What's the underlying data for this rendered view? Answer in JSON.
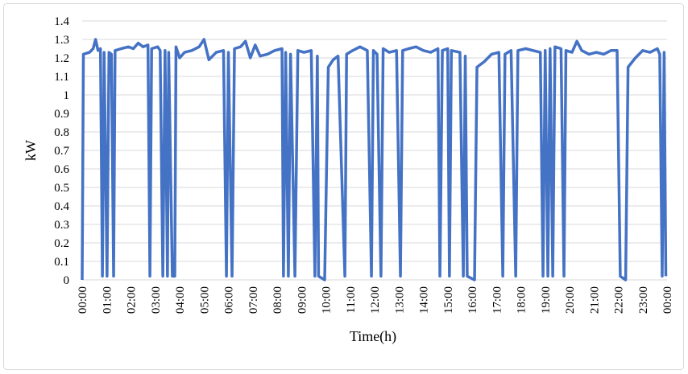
{
  "chart_data": {
    "type": "line",
    "x_label": "Time(h)",
    "y_label": "kW",
    "xlim": [
      0,
      24
    ],
    "xticks": [
      {
        "value": 0,
        "label": "00:00"
      },
      {
        "value": 1,
        "label": "01:00"
      },
      {
        "value": 2,
        "label": "02:00"
      },
      {
        "value": 3,
        "label": "03:00"
      },
      {
        "value": 4,
        "label": "04:00"
      },
      {
        "value": 5,
        "label": "05:00"
      },
      {
        "value": 6,
        "label": "06:00"
      },
      {
        "value": 7,
        "label": "07:00"
      },
      {
        "value": 8,
        "label": "08:00"
      },
      {
        "value": 9,
        "label": "09:00"
      },
      {
        "value": 10,
        "label": "10:00"
      },
      {
        "value": 11,
        "label": "11:00"
      },
      {
        "value": 12,
        "label": "12:00"
      },
      {
        "value": 13,
        "label": "13:00"
      },
      {
        "value": 14,
        "label": "14:00"
      },
      {
        "value": 15,
        "label": "15:00"
      },
      {
        "value": 16,
        "label": "16:00"
      },
      {
        "value": 17,
        "label": "17:00"
      },
      {
        "value": 18,
        "label": "18:00"
      },
      {
        "value": 19,
        "label": "19:00"
      },
      {
        "value": 20,
        "label": "20:00"
      },
      {
        "value": 21,
        "label": "21:00"
      },
      {
        "value": 22,
        "label": "22:00"
      },
      {
        "value": 23,
        "label": "23:00"
      },
      {
        "value": 24,
        "label": "00:00"
      }
    ],
    "ylim": [
      0,
      1.4
    ],
    "yticks": [
      0,
      0.1,
      0.2,
      0.3,
      0.4,
      0.5,
      0.6,
      0.7,
      0.8,
      0.9,
      1,
      1.1,
      1.2,
      1.3,
      1.4
    ],
    "grid": true,
    "color": "#4472c4",
    "x": [
      0,
      0.05,
      0.3,
      0.45,
      0.55,
      0.65,
      0.75,
      0.83,
      0.9,
      1.02,
      1.1,
      1.2,
      1.29,
      1.35,
      1.6,
      1.9,
      2.1,
      2.3,
      2.5,
      2.7,
      2.78,
      2.85,
      3.1,
      3.2,
      3.31,
      3.4,
      3.5,
      3.55,
      3.7,
      3.8,
      3.85,
      4.0,
      4.2,
      4.5,
      4.8,
      5.0,
      5.2,
      5.5,
      5.8,
      5.92,
      6.0,
      6.15,
      6.25,
      6.5,
      6.7,
      6.9,
      7.1,
      7.3,
      7.6,
      7.9,
      8.2,
      8.26,
      8.35,
      8.46,
      8.55,
      8.73,
      8.85,
      9.1,
      9.4,
      9.55,
      9.65,
      9.7,
      9.95,
      10.1,
      10.3,
      10.5,
      10.78,
      10.85,
      11.1,
      11.4,
      11.7,
      11.87,
      11.95,
      12.1,
      12.26,
      12.35,
      12.6,
      12.9,
      13.06,
      13.15,
      13.4,
      13.7,
      14.0,
      14.3,
      14.6,
      14.68,
      14.78,
      15.0,
      15.07,
      15.15,
      15.5,
      15.64,
      15.72,
      15.8,
      16.1,
      16.2,
      16.5,
      16.8,
      17.1,
      17.26,
      17.35,
      17.6,
      17.79,
      17.88,
      18.2,
      18.5,
      18.8,
      18.91,
      19.0,
      19.11,
      19.2,
      19.31,
      19.4,
      19.65,
      19.77,
      19.85,
      20.1,
      20.3,
      20.5,
      20.8,
      21.1,
      21.4,
      21.7,
      21.95,
      22.08,
      22.3,
      22.4,
      22.7,
      23.0,
      23.3,
      23.6,
      23.7,
      23.8,
      23.88,
      23.95
    ],
    "values": [
      0,
      1.22,
      1.23,
      1.25,
      1.3,
      1.24,
      1.25,
      0.02,
      1.23,
      0.02,
      1.23,
      1.22,
      0.02,
      1.24,
      1.25,
      1.26,
      1.25,
      1.28,
      1.26,
      1.27,
      0.02,
      1.25,
      1.26,
      1.24,
      0.02,
      1.24,
      0.02,
      1.23,
      0.02,
      0.02,
      1.26,
      1.2,
      1.23,
      1.24,
      1.26,
      1.3,
      1.19,
      1.23,
      1.24,
      0.02,
      1.23,
      0.02,
      1.25,
      1.26,
      1.29,
      1.2,
      1.27,
      1.21,
      1.22,
      1.24,
      1.25,
      0.02,
      1.23,
      0.02,
      1.22,
      0.02,
      1.24,
      1.23,
      1.24,
      0.02,
      1.21,
      0.02,
      0,
      1.15,
      1.19,
      1.21,
      0.02,
      1.22,
      1.24,
      1.26,
      1.24,
      0.02,
      1.24,
      1.22,
      0.02,
      1.25,
      1.23,
      1.24,
      0.02,
      1.24,
      1.25,
      1.26,
      1.24,
      1.23,
      1.25,
      0.02,
      1.24,
      1.25,
      0.02,
      1.24,
      1.23,
      0.02,
      1.21,
      0.02,
      0,
      1.15,
      1.18,
      1.22,
      1.23,
      0.02,
      1.22,
      1.24,
      0.02,
      1.24,
      1.25,
      1.24,
      1.23,
      0.02,
      1.24,
      0.02,
      1.25,
      0.02,
      1.26,
      1.25,
      0.02,
      1.24,
      1.23,
      1.29,
      1.24,
      1.22,
      1.23,
      1.22,
      1.24,
      1.24,
      0.02,
      0,
      1.15,
      1.2,
      1.24,
      1.23,
      1.25,
      1.22,
      0.02,
      1.23,
      0.02
    ]
  }
}
